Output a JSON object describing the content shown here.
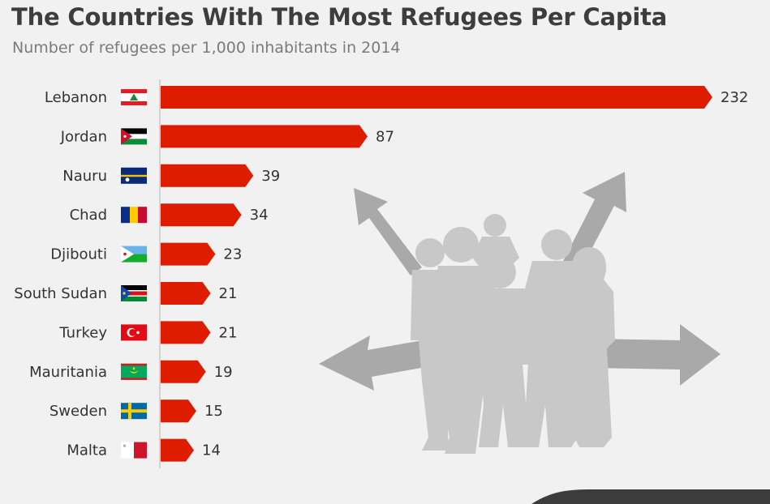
{
  "header": {
    "title": "The Countries With The Most Refugees Per Capita",
    "subtitle": "Number of refugees per 1,000 inhabitants in 2014"
  },
  "colors": {
    "bar": "#dd1c00",
    "silhouette": "#c8c8c8",
    "arrow": "#a9a9a9",
    "background": "#f1f1f1"
  },
  "chart_data": {
    "type": "bar",
    "orientation": "horizontal",
    "categories": [
      "Lebanon",
      "Jordan",
      "Nauru",
      "Chad",
      "Djibouti",
      "South Sudan",
      "Turkey",
      "Mauritania",
      "Sweden",
      "Malta"
    ],
    "values": [
      232,
      87,
      39,
      34,
      23,
      21,
      21,
      19,
      15,
      14
    ],
    "flag_icons": [
      "lebanon-flag-icon",
      "jordan-flag-icon",
      "nauru-flag-icon",
      "chad-flag-icon",
      "djibouti-flag-icon",
      "south-sudan-flag-icon",
      "turkey-flag-icon",
      "mauritania-flag-icon",
      "sweden-flag-icon",
      "malta-flag-icon"
    ],
    "xlim": [
      0,
      232
    ],
    "grid": false,
    "legend": "none"
  }
}
